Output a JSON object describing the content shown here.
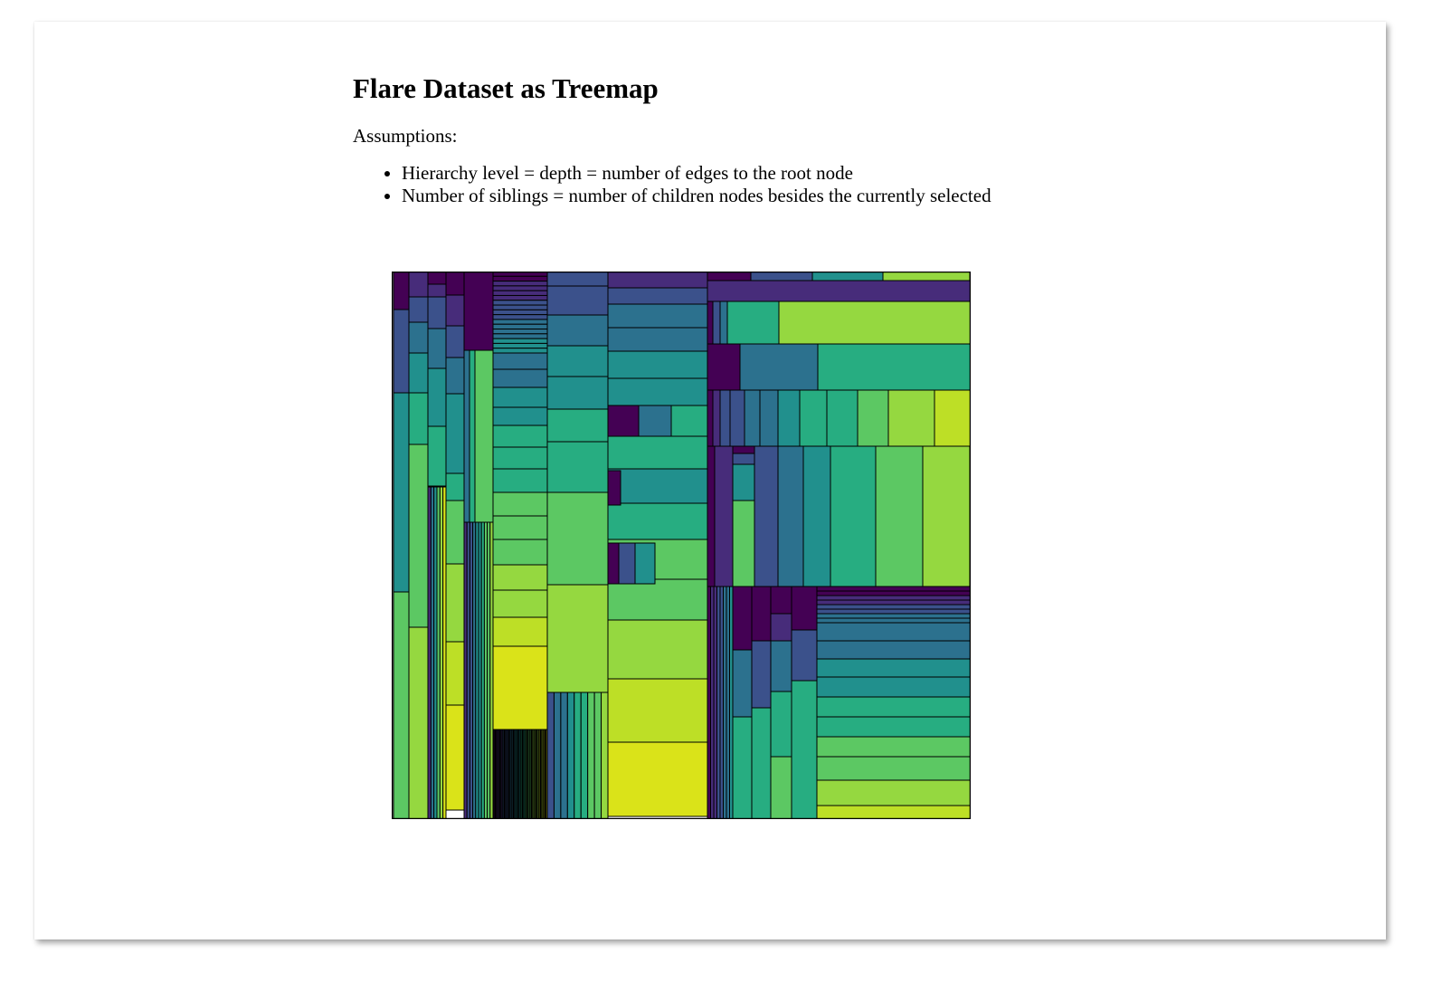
{
  "page": {
    "title": "Flare Dataset as Treemap",
    "intro": "Assumptions:",
    "notes": [
      "Hierarchy level = depth = number of edges to the root node",
      "Number of siblings = number of children nodes besides the currently selected"
    ]
  },
  "chart_data": {
    "type": "treemap",
    "title": "",
    "color_scale": "viridis",
    "border_color": "#000000"
  }
}
